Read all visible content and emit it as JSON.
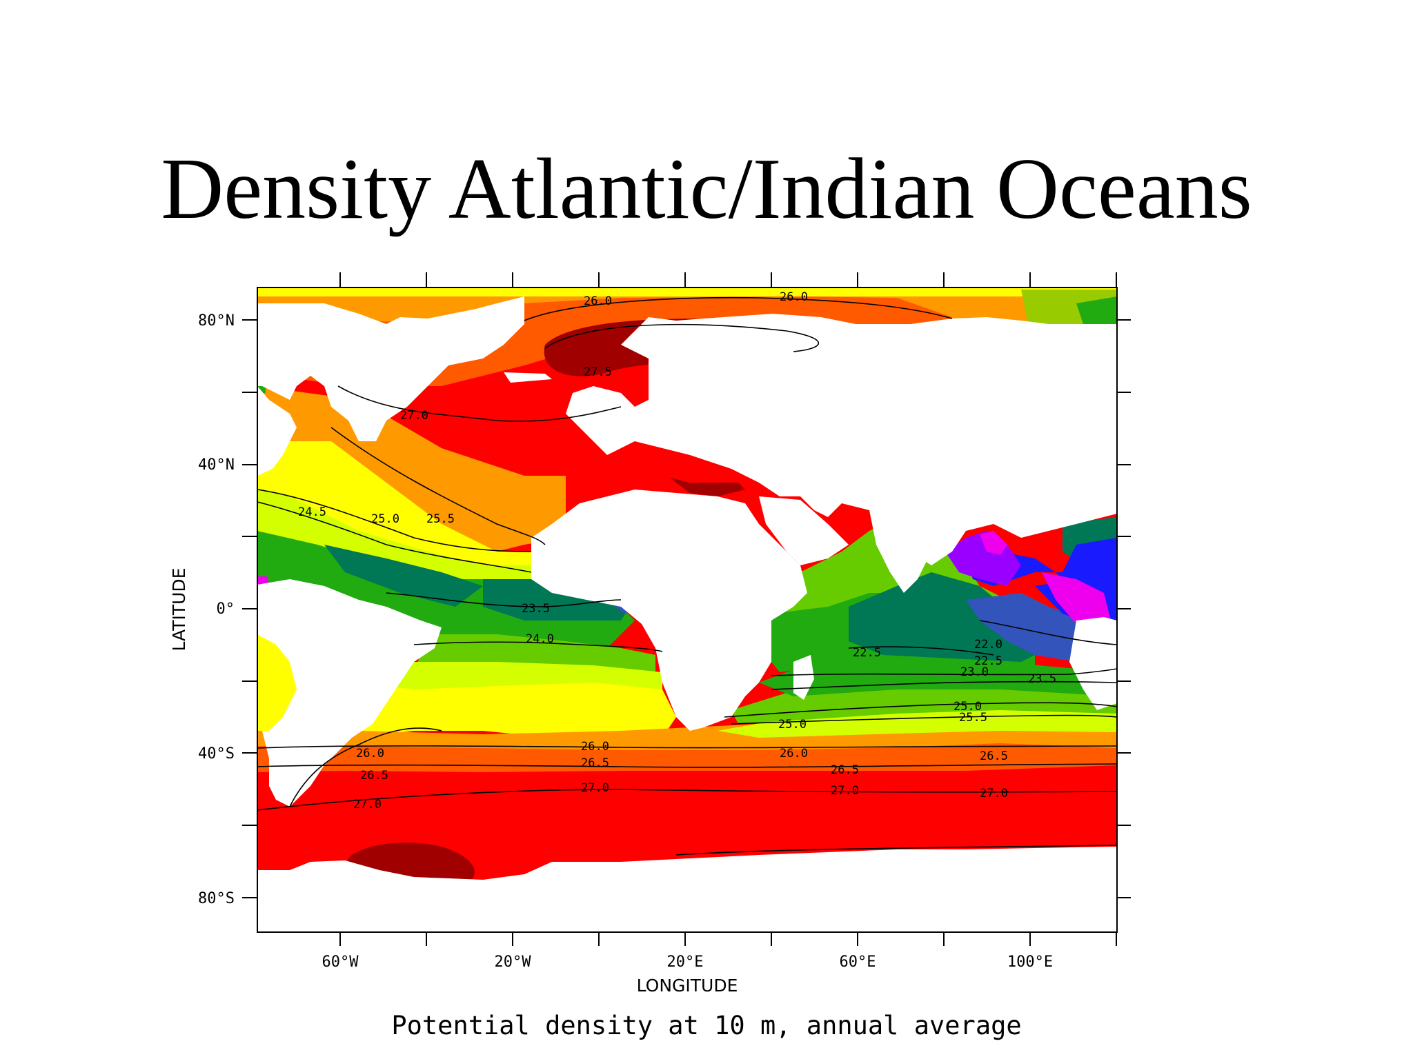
{
  "title": "Density Atlantic/Indian Oceans",
  "caption": "Potential density at 10 m, annual average",
  "map": {
    "xlabel": "LONGITUDE",
    "ylabel": "LATITUDE",
    "x_ticks": [
      "60°W",
      "20°W",
      "20°E",
      "60°E",
      "100°E"
    ],
    "y_ticks": [
      "80°N",
      "40°N",
      "0°",
      "40°S",
      "80°S"
    ],
    "contour_labels": [
      "26.0",
      "26.0",
      "27.5",
      "27.0",
      "24.5",
      "25.0",
      "25.5",
      "23.5",
      "24.0",
      "22.5",
      "22.0",
      "22.5",
      "23.0",
      "23.5",
      "25.0",
      "25.5",
      "25.0",
      "26.0",
      "26.0",
      "26.5",
      "26.0",
      "26.5",
      "26.5",
      "26.5",
      "27.0",
      "27.0",
      "27.0",
      "27.0"
    ],
    "colors": {
      "land": "#ffffff",
      "darkred": "#a00000",
      "red": "#ff0000",
      "orangered": "#ff5a00",
      "orange": "#ff9900",
      "yellow": "#ffff00",
      "yellowgreen": "#d4ff00",
      "lightgreen": "#66cc00",
      "green": "#22aa11",
      "darkgreen": "#007755",
      "steelblue": "#3355bb",
      "blue": "#1a1aff",
      "purple": "#9900ff",
      "magenta": "#ee00ee"
    }
  }
}
